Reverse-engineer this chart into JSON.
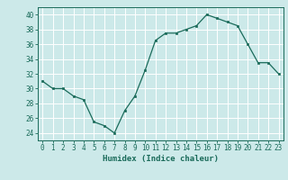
{
  "x": [
    0,
    1,
    2,
    3,
    4,
    5,
    6,
    7,
    8,
    9,
    10,
    11,
    12,
    13,
    14,
    15,
    16,
    17,
    18,
    19,
    20,
    21,
    22,
    23
  ],
  "y": [
    31,
    30,
    30,
    29,
    28.5,
    25.5,
    25,
    24,
    27,
    29,
    32.5,
    36.5,
    37.5,
    37.5,
    38,
    38.5,
    40,
    39.5,
    39,
    38.5,
    36,
    33.5,
    33.5,
    32
  ],
  "line_color": "#1a6b5a",
  "marker_color": "#1a6b5a",
  "bg_color": "#cce9e9",
  "grid_color": "#ffffff",
  "xlabel": "Humidex (Indice chaleur)",
  "ylim": [
    23,
    41
  ],
  "xlim": [
    -0.5,
    23.5
  ],
  "yticks": [
    24,
    26,
    28,
    30,
    32,
    34,
    36,
    38,
    40
  ],
  "xticks": [
    0,
    1,
    2,
    3,
    4,
    5,
    6,
    7,
    8,
    9,
    10,
    11,
    12,
    13,
    14,
    15,
    16,
    17,
    18,
    19,
    20,
    21,
    22,
    23
  ],
  "tick_color": "#1a6b5a",
  "axis_color": "#1a6b5a",
  "tick_fontsize": 5.5,
  "xlabel_fontsize": 6.5
}
